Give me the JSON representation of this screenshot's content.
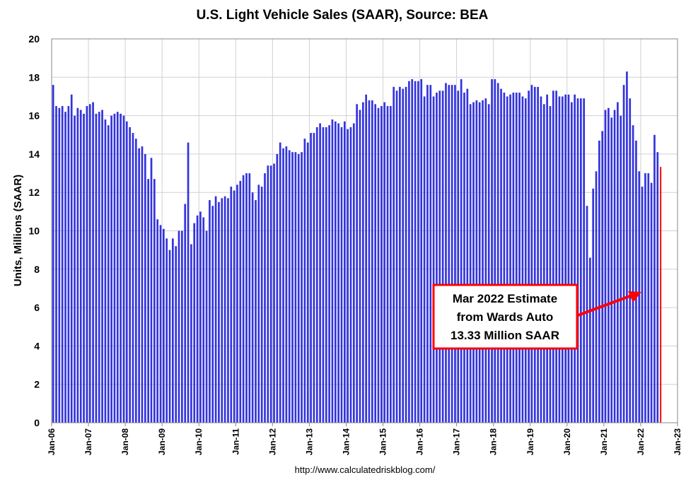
{
  "chart_data": {
    "type": "bar",
    "title": "U.S. Light Vehicle Sales (SAAR), Source: BEA",
    "xlabel": "",
    "ylabel": "Units, Millions (SAAR)",
    "ylim": [
      0,
      20
    ],
    "yticks": [
      "0",
      "2",
      "4",
      "6",
      "8",
      "10",
      "12",
      "14",
      "16",
      "18",
      "20"
    ],
    "x_start": "Jan-06",
    "xtick_labels": [
      "Jan-06",
      "Jan-07",
      "Jan-08",
      "Jan-09",
      "Jan-10",
      "Jan-11",
      "Jan-12",
      "Jan-13",
      "Jan-14",
      "Jan-15",
      "Jan-16",
      "Jan-17",
      "Jan-18",
      "Jan-19",
      "Jan-20",
      "Jan-21",
      "Jan-22",
      "Jan-23"
    ],
    "grid": "horizontal and vertical",
    "legend": "none",
    "bar_color": "#3333dd",
    "highlight_color": "#ff0000",
    "source_text": "http://www.calculatedriskblog.com/",
    "annotation": {
      "lines": [
        "Mar 2022 Estimate",
        "from Wards Auto",
        "13.33 Million SAAR"
      ],
      "target": "Mar-22"
    },
    "series": [
      {
        "values": [
          17.6,
          16.5,
          16.4,
          16.5,
          16.2,
          16.5,
          17.1,
          16.0,
          16.4,
          16.3,
          16.1,
          16.5,
          16.6,
          16.7,
          16.1,
          16.2,
          16.3,
          15.8,
          15.5,
          16.0,
          16.1,
          16.2,
          16.1,
          16.0,
          15.7,
          15.4,
          15.1,
          14.8,
          14.3,
          14.4,
          14.0,
          12.7,
          13.8,
          12.7,
          10.6,
          10.3,
          10.1,
          9.6,
          9.0,
          9.6,
          9.2,
          10.0,
          10.0,
          11.4,
          14.6,
          9.3,
          10.4,
          10.8,
          11.0,
          10.7,
          10.0,
          11.6,
          11.3,
          11.8,
          11.5,
          11.7,
          11.8,
          11.7,
          12.3,
          12.1,
          12.4,
          12.6,
          12.9,
          13.0,
          13.0,
          12.0,
          11.6,
          12.4,
          12.3,
          13.0,
          13.4,
          13.4,
          13.5,
          14.0,
          14.6,
          14.3,
          14.4,
          14.2,
          14.1,
          14.1,
          14.0,
          14.1,
          14.8,
          14.6,
          15.1,
          15.1,
          15.4,
          15.6,
          15.4,
          15.4,
          15.5,
          15.8,
          15.7,
          15.6,
          15.4,
          15.7,
          15.3,
          15.4,
          15.6,
          16.6,
          16.3,
          16.7,
          17.1,
          16.8,
          16.8,
          16.6,
          16.4,
          16.5,
          16.7,
          16.5,
          16.5,
          17.5,
          17.3,
          17.5,
          17.4,
          17.5,
          17.8,
          17.9,
          17.8,
          17.8,
          17.9,
          17.0,
          17.6,
          17.6,
          17.0,
          17.2,
          17.3,
          17.3,
          17.7,
          17.6,
          17.6,
          17.6,
          17.3,
          17.9,
          17.2,
          17.4,
          16.6,
          16.7,
          16.8,
          16.7,
          16.8,
          16.9,
          16.6,
          17.9,
          17.9,
          17.7,
          17.4,
          17.2,
          17.0,
          17.1,
          17.2,
          17.2,
          17.2,
          17.0,
          16.9,
          17.3,
          17.6,
          17.5,
          17.5,
          17.0,
          16.6,
          17.1,
          16.5,
          17.3,
          17.3,
          17.0,
          17.0,
          17.1,
          17.1,
          16.7,
          17.1,
          16.9,
          16.9,
          16.9,
          11.3,
          8.6,
          12.2,
          13.1,
          14.7,
          15.2,
          16.3,
          16.4,
          15.9,
          16.3,
          16.7,
          16.0,
          17.6,
          18.3,
          16.9,
          15.5,
          14.7,
          13.1,
          12.3,
          13.0,
          13.0,
          12.5,
          15.0,
          14.1,
          13.33
        ]
      }
    ]
  }
}
